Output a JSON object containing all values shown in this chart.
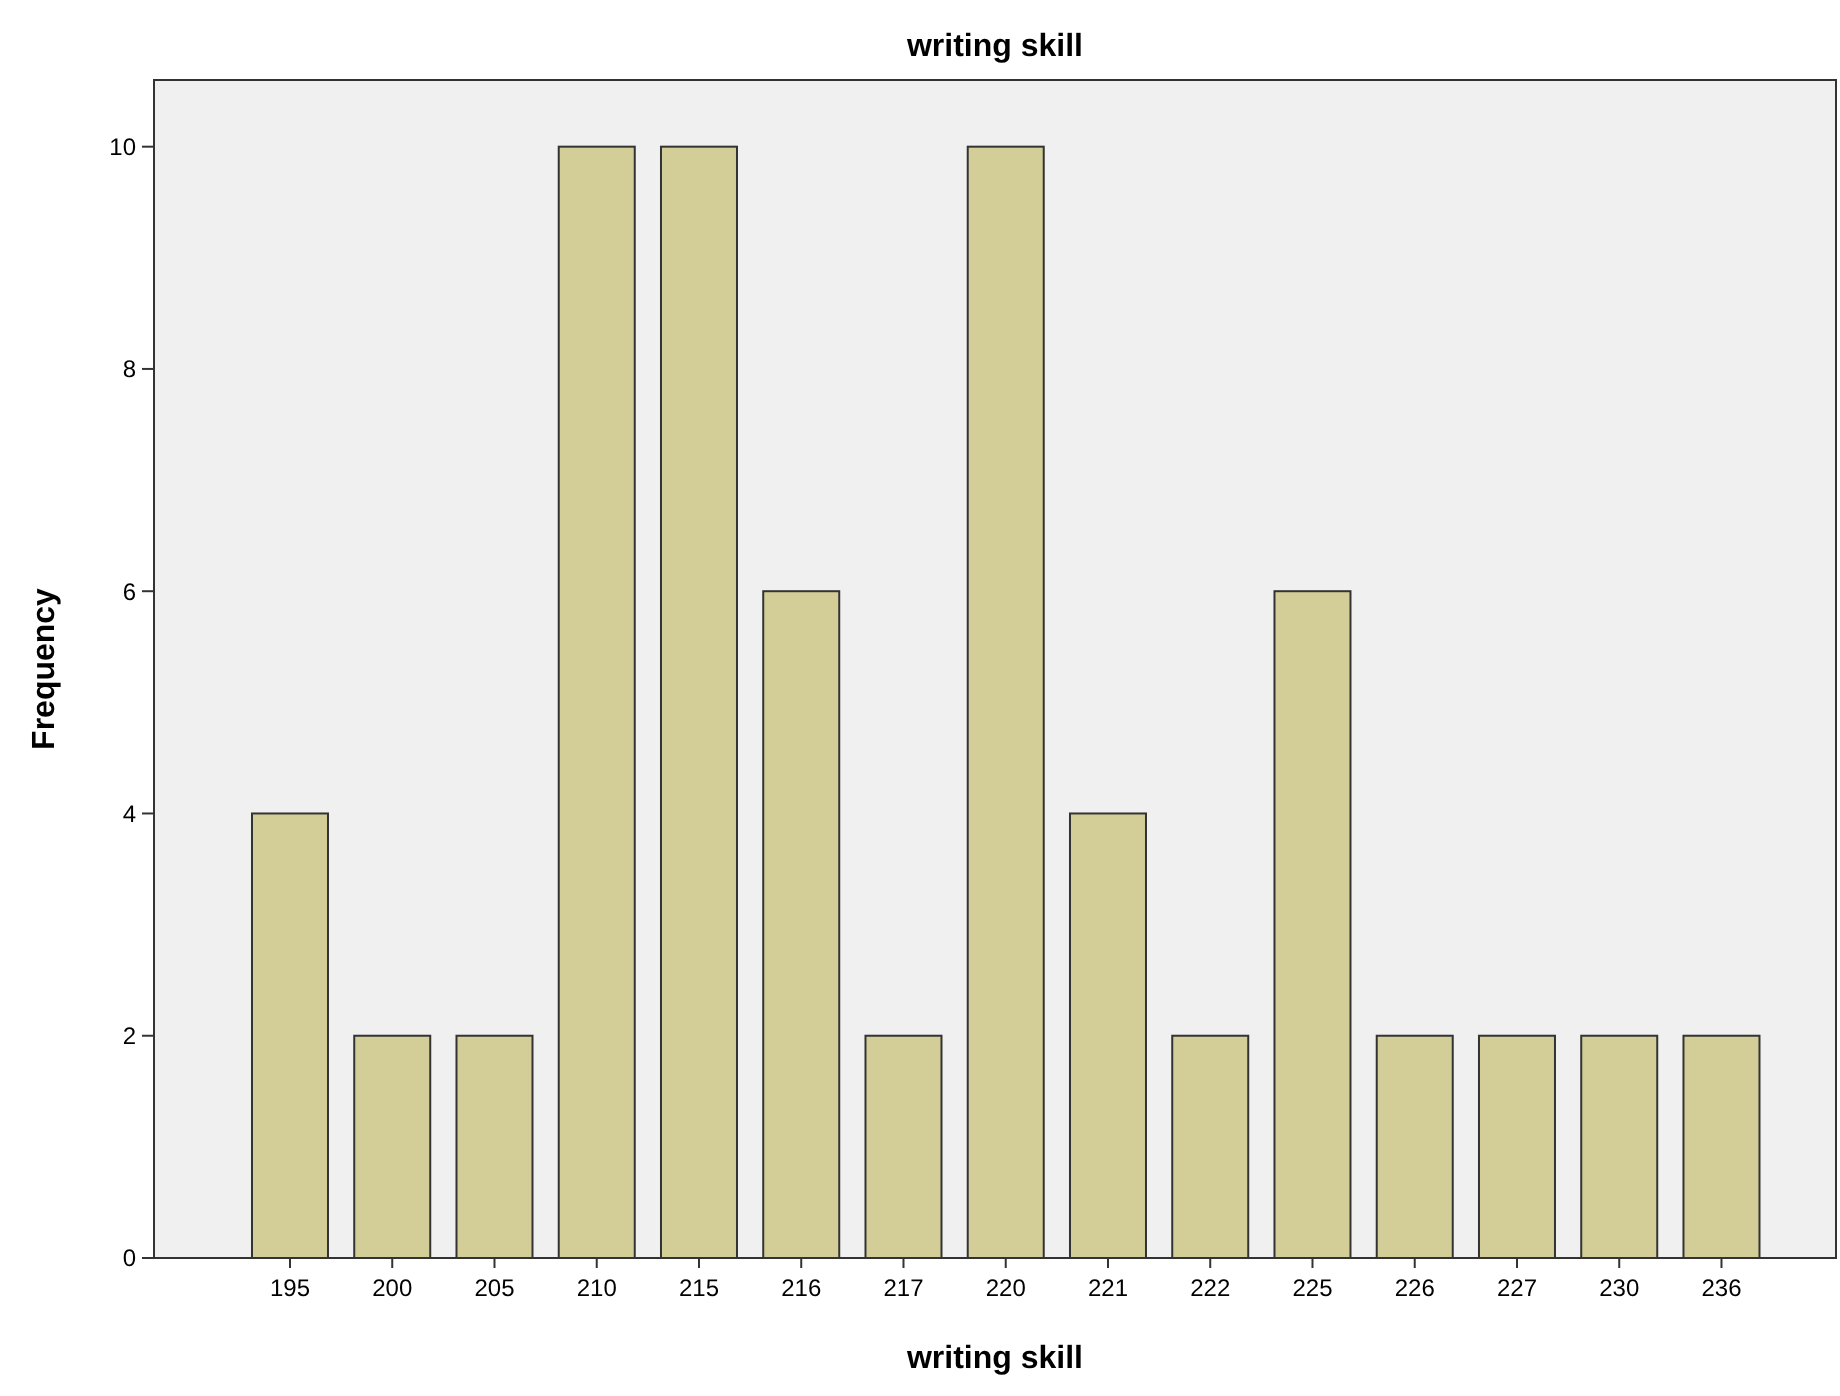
{
  "chart_data": {
    "type": "bar",
    "title": "writing skill",
    "xlabel": "writing skill",
    "ylabel": "Frequency",
    "categories": [
      "195",
      "200",
      "205",
      "210",
      "215",
      "216",
      "217",
      "220",
      "221",
      "222",
      "225",
      "226",
      "227",
      "230",
      "236"
    ],
    "values": [
      4,
      2,
      2,
      10,
      10,
      6,
      2,
      10,
      4,
      2,
      6,
      2,
      2,
      2,
      2
    ],
    "color": "#d3ce97",
    "ylim": [
      0,
      10.6
    ],
    "yticks": [
      0,
      2,
      4,
      6,
      8,
      10
    ],
    "grid": false
  }
}
